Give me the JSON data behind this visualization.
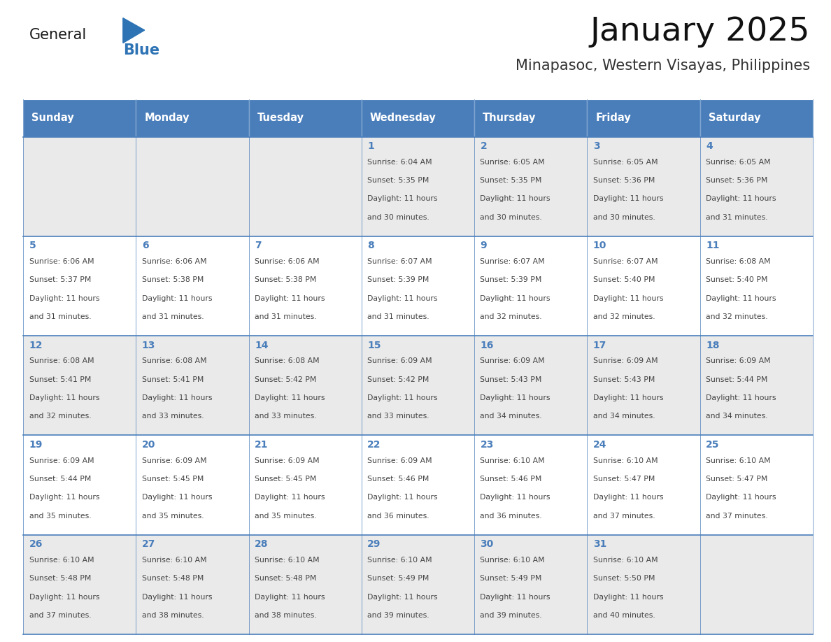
{
  "title": "January 2025",
  "subtitle": "Minapasoc, Western Visayas, Philippines",
  "days_of_week": [
    "Sunday",
    "Monday",
    "Tuesday",
    "Wednesday",
    "Thursday",
    "Friday",
    "Saturday"
  ],
  "header_bg": "#4A7EBB",
  "header_text": "#FFFFFF",
  "cell_bg_odd": "#EAEAEA",
  "cell_bg_even": "#FFFFFF",
  "day_number_color": "#4A7EBB",
  "text_color": "#444444",
  "line_color": "#4A7EBB",
  "logo_general_color": "#1a1a1a",
  "logo_blue_color": "#2E74B5",
  "logo_triangle_color": "#2E74B5",
  "calendar_data": [
    [
      {
        "day": null,
        "sunrise": null,
        "sunset": null,
        "daylight": null
      },
      {
        "day": null,
        "sunrise": null,
        "sunset": null,
        "daylight": null
      },
      {
        "day": null,
        "sunrise": null,
        "sunset": null,
        "daylight": null
      },
      {
        "day": 1,
        "sunrise": "6:04 AM",
        "sunset": "5:35 PM",
        "daylight": "11 hours and 30 minutes."
      },
      {
        "day": 2,
        "sunrise": "6:05 AM",
        "sunset": "5:35 PM",
        "daylight": "11 hours and 30 minutes."
      },
      {
        "day": 3,
        "sunrise": "6:05 AM",
        "sunset": "5:36 PM",
        "daylight": "11 hours and 30 minutes."
      },
      {
        "day": 4,
        "sunrise": "6:05 AM",
        "sunset": "5:36 PM",
        "daylight": "11 hours and 31 minutes."
      }
    ],
    [
      {
        "day": 5,
        "sunrise": "6:06 AM",
        "sunset": "5:37 PM",
        "daylight": "11 hours and 31 minutes."
      },
      {
        "day": 6,
        "sunrise": "6:06 AM",
        "sunset": "5:38 PM",
        "daylight": "11 hours and 31 minutes."
      },
      {
        "day": 7,
        "sunrise": "6:06 AM",
        "sunset": "5:38 PM",
        "daylight": "11 hours and 31 minutes."
      },
      {
        "day": 8,
        "sunrise": "6:07 AM",
        "sunset": "5:39 PM",
        "daylight": "11 hours and 31 minutes."
      },
      {
        "day": 9,
        "sunrise": "6:07 AM",
        "sunset": "5:39 PM",
        "daylight": "11 hours and 32 minutes."
      },
      {
        "day": 10,
        "sunrise": "6:07 AM",
        "sunset": "5:40 PM",
        "daylight": "11 hours and 32 minutes."
      },
      {
        "day": 11,
        "sunrise": "6:08 AM",
        "sunset": "5:40 PM",
        "daylight": "11 hours and 32 minutes."
      }
    ],
    [
      {
        "day": 12,
        "sunrise": "6:08 AM",
        "sunset": "5:41 PM",
        "daylight": "11 hours and 32 minutes."
      },
      {
        "day": 13,
        "sunrise": "6:08 AM",
        "sunset": "5:41 PM",
        "daylight": "11 hours and 33 minutes."
      },
      {
        "day": 14,
        "sunrise": "6:08 AM",
        "sunset": "5:42 PM",
        "daylight": "11 hours and 33 minutes."
      },
      {
        "day": 15,
        "sunrise": "6:09 AM",
        "sunset": "5:42 PM",
        "daylight": "11 hours and 33 minutes."
      },
      {
        "day": 16,
        "sunrise": "6:09 AM",
        "sunset": "5:43 PM",
        "daylight": "11 hours and 34 minutes."
      },
      {
        "day": 17,
        "sunrise": "6:09 AM",
        "sunset": "5:43 PM",
        "daylight": "11 hours and 34 minutes."
      },
      {
        "day": 18,
        "sunrise": "6:09 AM",
        "sunset": "5:44 PM",
        "daylight": "11 hours and 34 minutes."
      }
    ],
    [
      {
        "day": 19,
        "sunrise": "6:09 AM",
        "sunset": "5:44 PM",
        "daylight": "11 hours and 35 minutes."
      },
      {
        "day": 20,
        "sunrise": "6:09 AM",
        "sunset": "5:45 PM",
        "daylight": "11 hours and 35 minutes."
      },
      {
        "day": 21,
        "sunrise": "6:09 AM",
        "sunset": "5:45 PM",
        "daylight": "11 hours and 35 minutes."
      },
      {
        "day": 22,
        "sunrise": "6:09 AM",
        "sunset": "5:46 PM",
        "daylight": "11 hours and 36 minutes."
      },
      {
        "day": 23,
        "sunrise": "6:10 AM",
        "sunset": "5:46 PM",
        "daylight": "11 hours and 36 minutes."
      },
      {
        "day": 24,
        "sunrise": "6:10 AM",
        "sunset": "5:47 PM",
        "daylight": "11 hours and 37 minutes."
      },
      {
        "day": 25,
        "sunrise": "6:10 AM",
        "sunset": "5:47 PM",
        "daylight": "11 hours and 37 minutes."
      }
    ],
    [
      {
        "day": 26,
        "sunrise": "6:10 AM",
        "sunset": "5:48 PM",
        "daylight": "11 hours and 37 minutes."
      },
      {
        "day": 27,
        "sunrise": "6:10 AM",
        "sunset": "5:48 PM",
        "daylight": "11 hours and 38 minutes."
      },
      {
        "day": 28,
        "sunrise": "6:10 AM",
        "sunset": "5:48 PM",
        "daylight": "11 hours and 38 minutes."
      },
      {
        "day": 29,
        "sunrise": "6:10 AM",
        "sunset": "5:49 PM",
        "daylight": "11 hours and 39 minutes."
      },
      {
        "day": 30,
        "sunrise": "6:10 AM",
        "sunset": "5:49 PM",
        "daylight": "11 hours and 39 minutes."
      },
      {
        "day": 31,
        "sunrise": "6:10 AM",
        "sunset": "5:50 PM",
        "daylight": "11 hours and 40 minutes."
      },
      {
        "day": null,
        "sunrise": null,
        "sunset": null,
        "daylight": null
      }
    ]
  ]
}
